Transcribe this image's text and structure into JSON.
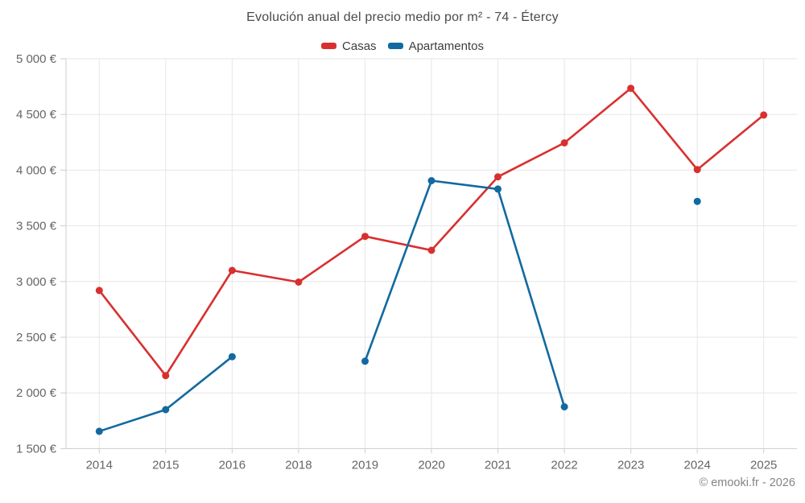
{
  "title": "Evolución anual del precio medio por m² - 74 - Étercy",
  "watermark": "© emooki.fr - 2026",
  "chart_data": {
    "type": "line",
    "title": "Evolución anual del precio medio por m² - 74 - Étercy",
    "categories": [
      "2014",
      "2015",
      "2016",
      "2018",
      "2019",
      "2020",
      "2021",
      "2022",
      "2023",
      "2024",
      "2025"
    ],
    "series": [
      {
        "name": "Casas",
        "color": "#d8302f",
        "values": [
          2920,
          2155,
          3100,
          2995,
          3405,
          3280,
          3940,
          4245,
          4735,
          4005,
          4495
        ]
      },
      {
        "name": "Apartamentos",
        "color": "#1269a0",
        "values": [
          1655,
          1850,
          2325,
          null,
          2285,
          3905,
          3830,
          1875,
          null,
          3720,
          null
        ]
      }
    ],
    "xlabel": "",
    "ylabel": "",
    "ylim": [
      1500,
      5000
    ],
    "ytick_step": 500,
    "ytick_suffix": " €",
    "grid": true,
    "legend_position": "top",
    "colors": {
      "grid_line": "#e6e6e6",
      "axis_line": "#cccccc",
      "tick_label": "#666666",
      "title_text": "#4a4a4a",
      "legend_text": "#3d3d3d",
      "watermark_text": "#848484"
    }
  }
}
